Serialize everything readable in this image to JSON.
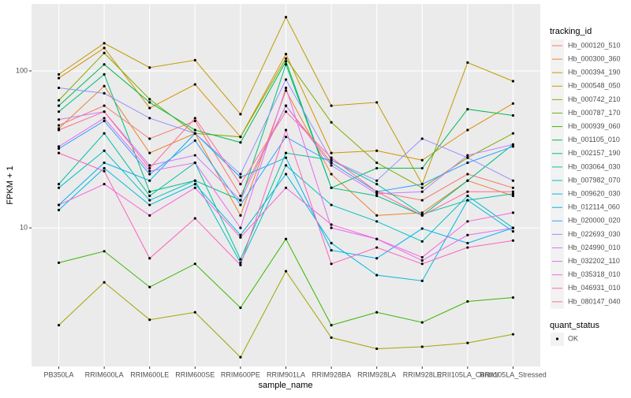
{
  "chart_data": {
    "type": "line",
    "x_label": "sample_name",
    "y_label": "FPKM + 1",
    "log_scale": true,
    "grid": true,
    "point_color": "#000000",
    "categories": [
      "PB350LA",
      "RRIM600LA",
      "RRIM600LE",
      "RRIM600SE",
      "RRIM600PE",
      "RRIM901LA",
      "RRIM928BA",
      "RRIM928LA",
      "RRIM928LE",
      "RRII105LA_Control",
      "RRII105LA_Stressed"
    ],
    "ylim": [
      1.31,
      267
    ],
    "yticks": [
      10,
      100
    ],
    "legend_title": "tracking_id",
    "series": [
      {
        "name": "Hb_000120_510",
        "color": "#F8766D",
        "values": [
          45,
          60,
          37,
          48,
          16,
          60,
          26,
          17,
          15,
          22,
          18
        ]
      },
      {
        "name": "Hb_000300_360",
        "color": "#EA8331",
        "values": [
          43,
          80,
          30,
          40,
          12,
          75,
          22,
          12,
          12.5,
          20,
          16
        ]
      },
      {
        "name": "Hb_000394_190",
        "color": "#D89000",
        "values": [
          90,
          140,
          58,
          82,
          38,
          128,
          30,
          31,
          27,
          42,
          62
        ]
      },
      {
        "name": "Hb_000548_050",
        "color": "#C09B00",
        "values": [
          95,
          150,
          105,
          117,
          53,
          220,
          60,
          63,
          19,
          113,
          86
        ]
      },
      {
        "name": "Hb_000742_210",
        "color": "#A3A500",
        "values": [
          2.4,
          4.5,
          2.6,
          2.9,
          1.5,
          5.3,
          2.0,
          1.7,
          1.75,
          1.85,
          2.1
        ]
      },
      {
        "name": "Hb_000787_170",
        "color": "#7CAE00",
        "values": [
          65,
          130,
          66,
          40,
          38,
          120,
          47,
          26,
          18,
          28,
          40
        ]
      },
      {
        "name": "Hb_000939_060",
        "color": "#39B600",
        "values": [
          6,
          7.1,
          4.2,
          5.9,
          3.1,
          8.5,
          2.4,
          2.9,
          2.5,
          3.4,
          3.6
        ]
      },
      {
        "name": "Hb_001105_010",
        "color": "#00BB4E",
        "values": [
          60,
          110,
          63,
          42,
          35,
          115,
          18,
          24,
          24,
          57,
          52
        ]
      },
      {
        "name": "Hb_002157_190",
        "color": "#00BF7D",
        "values": [
          55,
          95,
          17,
          20,
          15,
          110,
          18,
          16,
          12,
          20,
          34
        ]
      },
      {
        "name": "Hb_003064_030",
        "color": "#00C1A3",
        "values": [
          19,
          40,
          16,
          26,
          6.3,
          30,
          27,
          19,
          12.2,
          15,
          16.5
        ]
      },
      {
        "name": "Hb_007982_070",
        "color": "#00BFC4",
        "values": [
          18,
          31,
          15,
          20,
          6,
          25,
          14,
          11,
          8.2,
          16,
          10
        ]
      },
      {
        "name": "Hb_009620_030",
        "color": "#00BAE0",
        "values": [
          13,
          24,
          14,
          19,
          9,
          22,
          8,
          5,
          4.6,
          15,
          9.5
        ]
      },
      {
        "name": "Hb_012114_060",
        "color": "#00B0F6",
        "values": [
          14,
          26,
          20,
          40,
          21,
          28,
          7.2,
          6.4,
          9.9,
          8,
          10
        ]
      },
      {
        "name": "Hb_020000_020",
        "color": "#35A2FF",
        "values": [
          32,
          48,
          22,
          36,
          14,
          38,
          26,
          17,
          19,
          26,
          33
        ]
      },
      {
        "name": "Hb_022693_030",
        "color": "#9590FF",
        "values": [
          78,
          72,
          50,
          40,
          22,
          88,
          27,
          20,
          37,
          28,
          20
        ]
      },
      {
        "name": "Hb_024990_010",
        "color": "#C77CFF",
        "values": [
          49,
          55,
          25,
          29,
          15,
          60,
          25,
          16.5,
          17,
          29,
          34
        ]
      },
      {
        "name": "Hb_032202_110",
        "color": "#E76BF3",
        "values": [
          33,
          50,
          23,
          26,
          10,
          78,
          10,
          8.5,
          6.2,
          9,
          10
        ]
      },
      {
        "name": "Hb_035318_010",
        "color": "#FA62DB",
        "values": [
          14,
          19,
          12,
          18,
          8.7,
          18,
          10.5,
          8.5,
          6.5,
          11,
          12.5
        ]
      },
      {
        "name": "Hb_046931_010",
        "color": "#FF62BC",
        "values": [
          30,
          23,
          6.4,
          11.5,
          5.8,
          42,
          5.9,
          7.5,
          5.9,
          7.5,
          8.3
        ]
      },
      {
        "name": "Hb_080147_040",
        "color": "#FF6A98",
        "values": [
          42,
          55,
          24,
          50,
          19,
          55,
          28,
          17,
          12,
          17,
          17
        ]
      }
    ],
    "legend2": {
      "title": "quant_status",
      "entries": [
        "OK"
      ]
    }
  }
}
